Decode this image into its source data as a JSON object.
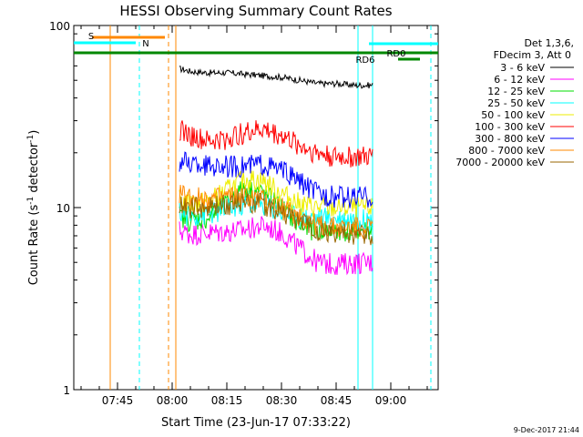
{
  "chart_data": {
    "type": "line",
    "title": "HESSI Observing Summary Count Rates",
    "xlabel": "Start Time (23-Jun-17 07:33:22)",
    "ylabel": "Count Rate (s⁻¹ detector⁻¹)",
    "ylabel_parts": [
      "Count Rate (s",
      "-1",
      " detector",
      "-1",
      ")"
    ],
    "yscale": "log",
    "ylim": [
      1,
      100
    ],
    "xlim": [
      "07:33",
      "09:13"
    ],
    "x_ticks": [
      "07:45",
      "08:00",
      "08:15",
      "08:30",
      "08:45",
      "09:00"
    ],
    "y_ticks": [
      "1",
      "10",
      "100"
    ],
    "legend_header": [
      "Det 1,3,6,",
      "FDecim 3, Att 0"
    ],
    "legend_position": "right",
    "timestamp": "9-Dec-2017 21:44",
    "data_start": "08:02",
    "data_end": "08:55",
    "series": [
      {
        "name": "3 - 6 keV",
        "color": "#000000",
        "x": [
          "08:02",
          "08:05",
          "08:10",
          "08:15",
          "08:20",
          "08:25",
          "08:30",
          "08:35",
          "08:40",
          "08:45",
          "08:50",
          "08:55"
        ],
        "values": [
          58,
          56,
          55,
          55,
          54,
          53,
          52,
          50,
          48,
          48,
          47,
          47
        ]
      },
      {
        "name": "6 - 12 keV",
        "color": "#ff00ff",
        "x": [
          "08:02",
          "08:05",
          "08:10",
          "08:15",
          "08:20",
          "08:25",
          "08:30",
          "08:35",
          "08:40",
          "08:45",
          "08:50",
          "08:55"
        ],
        "values": [
          7.5,
          7.2,
          7.3,
          7.4,
          7.6,
          8.0,
          7.3,
          6.0,
          5.0,
          4.9,
          5.0,
          5.0
        ]
      },
      {
        "name": "12 - 25 keV",
        "color": "#00dd00",
        "x": [
          "08:02",
          "08:05",
          "08:10",
          "08:15",
          "08:20",
          "08:25",
          "08:30",
          "08:35",
          "08:40",
          "08:45",
          "08:50",
          "08:55"
        ],
        "values": [
          9.0,
          8.5,
          8.8,
          10.5,
          13.0,
          12.0,
          10.0,
          8.0,
          7.5,
          7.5,
          7.5,
          7.5
        ]
      },
      {
        "name": "25 - 50 keV",
        "color": "#00ffff",
        "x": [
          "08:02",
          "08:05",
          "08:10",
          "08:15",
          "08:20",
          "08:25",
          "08:30",
          "08:35",
          "08:40",
          "08:45",
          "08:50",
          "08:55"
        ],
        "values": [
          9.5,
          9.0,
          9.2,
          9.8,
          10.5,
          10.5,
          9.5,
          9.0,
          8.8,
          8.8,
          8.8,
          8.5
        ]
      },
      {
        "name": "50 - 100 keV",
        "color": "#eeee00",
        "x": [
          "08:02",
          "08:05",
          "08:10",
          "08:15",
          "08:20",
          "08:25",
          "08:30",
          "08:35",
          "08:40",
          "08:45",
          "08:50",
          "08:55"
        ],
        "values": [
          11.0,
          10.5,
          10.8,
          12.5,
          14.5,
          14.0,
          12.0,
          10.5,
          10.0,
          10.0,
          10.0,
          10.0
        ]
      },
      {
        "name": "100 - 300 keV",
        "color": "#ff0000",
        "x": [
          "08:02",
          "08:05",
          "08:10",
          "08:15",
          "08:20",
          "08:25",
          "08:30",
          "08:35",
          "08:40",
          "08:45",
          "08:50",
          "08:55"
        ],
        "values": [
          27,
          25,
          23,
          24,
          26,
          27,
          25,
          22,
          20,
          19,
          19,
          19
        ]
      },
      {
        "name": "300 - 800 keV",
        "color": "#0000ff",
        "x": [
          "08:02",
          "08:05",
          "08:10",
          "08:15",
          "08:20",
          "08:25",
          "08:30",
          "08:35",
          "08:40",
          "08:45",
          "08:50",
          "08:55"
        ],
        "values": [
          18,
          17.5,
          17,
          17,
          17,
          17.5,
          16,
          14,
          12,
          11.5,
          11.5,
          11.5
        ]
      },
      {
        "name": "800 - 7000 keV",
        "color": "#ff8800",
        "x": [
          "08:02",
          "08:05",
          "08:10",
          "08:15",
          "08:20",
          "08:25",
          "08:30",
          "08:35",
          "08:40",
          "08:45",
          "08:50",
          "08:55"
        ],
        "values": [
          12,
          11.5,
          11.2,
          11.5,
          11.5,
          11.0,
          10.0,
          9.0,
          8.0,
          7.8,
          7.8,
          7.8
        ]
      },
      {
        "name": "7000 - 20000 keV",
        "color": "#996600",
        "x": [
          "08:02",
          "08:05",
          "08:10",
          "08:15",
          "08:20",
          "08:25",
          "08:30",
          "08:35",
          "08:40",
          "08:45",
          "08:50",
          "08:55"
        ],
        "values": [
          10.5,
          10.0,
          10.0,
          10.5,
          11.0,
          10.5,
          9.5,
          8.5,
          7.5,
          7.2,
          7.2,
          7.2
        ]
      }
    ],
    "markers": {
      "S": {
        "label": "S",
        "color": "#ff8800",
        "start": "07:38",
        "end": "07:58"
      },
      "N": {
        "label": "N",
        "color": "#00ffff",
        "start": "07:33",
        "end": "07:50"
      },
      "N_end": {
        "color": "#00ffff",
        "start": "08:54",
        "end": "09:13"
      },
      "RD6": {
        "label": "RD6",
        "color": "#008800",
        "start": "07:33",
        "end": "09:13"
      },
      "RD0": {
        "label": "RD0",
        "color": "#008800",
        "start": "09:02",
        "end": "09:08"
      }
    },
    "vlines": [
      {
        "time": "07:43",
        "color": "#ff8800",
        "style": "solid"
      },
      {
        "time": "07:51",
        "color": "#00ffff",
        "style": "dashed"
      },
      {
        "time": "07:59",
        "color": "#ff8800",
        "style": "dashed"
      },
      {
        "time": "08:01",
        "color": "#ff8800",
        "style": "solid"
      },
      {
        "time": "08:51",
        "color": "#00ffff",
        "style": "solid"
      },
      {
        "time": "08:55",
        "color": "#00ffff",
        "style": "solid"
      },
      {
        "time": "09:11",
        "color": "#00ffff",
        "style": "dashed"
      }
    ]
  }
}
